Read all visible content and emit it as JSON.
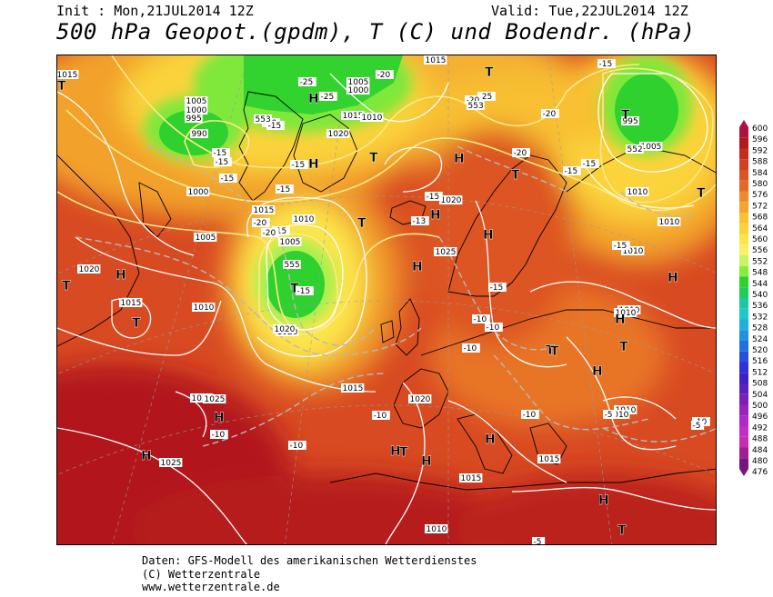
{
  "header": {
    "init": "Init : Mon,21JUL2014 12Z",
    "valid": "Valid: Tue,22JUL2014 12Z",
    "title": "500 hPa Geopot.(gpdm), T (C) und Bodendr. (hPa)"
  },
  "map": {
    "pressure_labels": [
      "1015",
      "1005",
      "1000",
      "995",
      "990",
      "1015",
      "1005",
      "1000",
      "1015",
      "1010",
      "1020",
      "1015",
      "1010",
      "1005",
      "1000",
      "995",
      "1005",
      "1010",
      "1010",
      "1010",
      "1020",
      "1015",
      "1010",
      "1005",
      "1020",
      "1025",
      "1025",
      "1020",
      "1015",
      "1020",
      "1025",
      "1020",
      "1010",
      "1010",
      "1010",
      "1015",
      "1015",
      "1010",
      "1025",
      "1010"
    ],
    "temp_labels": [
      "-25",
      "-25",
      "-20",
      "-25",
      "-20",
      "-15",
      "-15",
      "-15",
      "-20",
      "-20",
      "-15",
      "-15",
      "-15",
      "-15",
      "-15",
      "-15",
      "-20",
      "-13",
      "-15",
      "-20",
      "-20",
      "-15",
      "-15",
      "-15",
      "-15",
      "-10",
      "-10",
      "-10",
      "-10",
      "-10",
      "-10",
      "-10",
      "-10",
      "-5",
      "-5",
      "-5"
    ],
    "geopot_labels": [
      "553",
      "553",
      "552",
      "555"
    ],
    "high_markers": [
      "H",
      "H",
      "H",
      "H",
      "H",
      "H",
      "H",
      "H",
      "H",
      "H",
      "H",
      "H",
      "H",
      "H",
      "H",
      "H"
    ],
    "low_markers": [
      "T",
      "T",
      "T",
      "T",
      "T",
      "T",
      "T",
      "T",
      "T",
      "T",
      "T",
      "T",
      "T",
      "T",
      "T"
    ]
  },
  "legend": {
    "values": [
      "600",
      "596",
      "592",
      "588",
      "584",
      "580",
      "576",
      "572",
      "568",
      "564",
      "560",
      "556",
      "552",
      "548",
      "544",
      "540",
      "536",
      "532",
      "528",
      "524",
      "520",
      "516",
      "512",
      "508",
      "504",
      "500",
      "496",
      "492",
      "488",
      "484",
      "480",
      "476"
    ],
    "colors": [
      "#ad1240",
      "#b21818",
      "#c42d1d",
      "#d13f20",
      "#dd5424",
      "#e66a26",
      "#ef8a2a",
      "#f5a52e",
      "#f8c032",
      "#fbd33a",
      "#fce64c",
      "#f8f164",
      "#c8f460",
      "#83ef3a",
      "#2ed12e",
      "#20cc5a",
      "#20c8a0",
      "#1ec8c8",
      "#20b0dc",
      "#2090e0",
      "#2070e4",
      "#2850e0",
      "#3030d8",
      "#3a22c8",
      "#5a20c0",
      "#7a20b8",
      "#9624c0",
      "#b028c8",
      "#c42cc8",
      "#c82cb0",
      "#a01e90",
      "#78147a"
    ]
  },
  "footer": {
    "line1": "Daten: GFS-Modell des amerikanischen Wetterdienstes",
    "line2": "(C) Wetterzentrale",
    "line3": "www.wetterzentrale.de"
  }
}
